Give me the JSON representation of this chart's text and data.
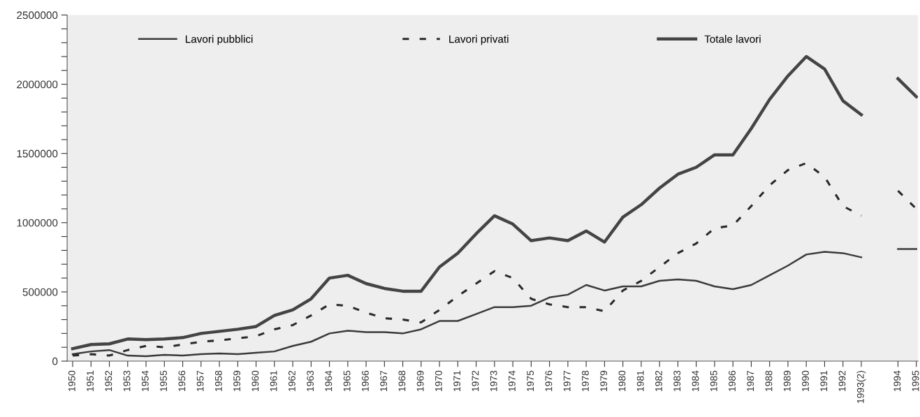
{
  "chart_data": {
    "type": "line",
    "categories": [
      "1950",
      "1951",
      "1952",
      "1953",
      "1954",
      "1955",
      "1956",
      "1957",
      "1958",
      "1959",
      "1960",
      "1961",
      "1962",
      "1963",
      "1964",
      "1965",
      "1966",
      "1967",
      "1968",
      "1969",
      "1970",
      "1971",
      "1972",
      "1973",
      "1974",
      "1975",
      "1976",
      "1977",
      "1978",
      "1979",
      "1980",
      "1981",
      "1982",
      "1983",
      "1984",
      "1985",
      "1986",
      "1987",
      "1988",
      "1989",
      "1990",
      "1991",
      "1992",
      "1993(2)",
      null,
      "1994",
      "1995"
    ],
    "series": [
      {
        "name": "Lavori pubblici",
        "color": "#3a3a3a",
        "line_style": "solid",
        "values": [
          50000,
          70000,
          80000,
          40000,
          35000,
          45000,
          40000,
          50000,
          55000,
          50000,
          60000,
          70000,
          110000,
          140000,
          200000,
          220000,
          210000,
          210000,
          200000,
          230000,
          290000,
          290000,
          340000,
          390000,
          390000,
          400000,
          460000,
          480000,
          550000,
          510000,
          540000,
          540000,
          580000,
          590000,
          580000,
          540000,
          520000,
          550000,
          620000,
          690000,
          770000,
          790000,
          780000,
          750000,
          null,
          810000,
          810000
        ]
      },
      {
        "name": "Lavori privati",
        "color": "#2a2a2a",
        "line_style": "dashed",
        "values": [
          40000,
          50000,
          40000,
          80000,
          110000,
          100000,
          120000,
          140000,
          150000,
          165000,
          180000,
          230000,
          260000,
          330000,
          410000,
          400000,
          350000,
          310000,
          300000,
          280000,
          370000,
          470000,
          560000,
          650000,
          600000,
          450000,
          410000,
          390000,
          390000,
          360000,
          510000,
          580000,
          680000,
          780000,
          850000,
          960000,
          980000,
          1120000,
          1270000,
          1380000,
          1430000,
          1330000,
          1120000,
          1050000,
          null,
          1230000,
          1100000
        ]
      },
      {
        "name": "Totale lavori",
        "color": "#444444",
        "line_style": "solid",
        "values": [
          90000,
          120000,
          125000,
          160000,
          155000,
          160000,
          170000,
          200000,
          215000,
          230000,
          250000,
          330000,
          370000,
          450000,
          600000,
          620000,
          560000,
          525000,
          505000,
          505000,
          680000,
          780000,
          920000,
          1050000,
          990000,
          870000,
          890000,
          870000,
          940000,
          860000,
          1040000,
          1130000,
          1250000,
          1350000,
          1400000,
          1490000,
          1490000,
          1680000,
          1890000,
          2060000,
          2200000,
          2110000,
          1880000,
          1780000,
          null,
          2040000,
          1910000
        ]
      }
    ],
    "ylim": [
      0,
      2500000
    ],
    "yticks": [
      0,
      {
        "value": 100000,
        "label": null
      },
      {
        "value": 200000,
        "label": null
      },
      {
        "value": 300000,
        "label": null
      },
      {
        "value": 400000,
        "label": null
      },
      500000,
      {
        "value": 600000,
        "label": null
      },
      {
        "value": 700000,
        "label": null
      },
      {
        "value": 800000,
        "label": null
      },
      {
        "value": 900000,
        "label": null
      },
      1000000,
      {
        "value": 1100000,
        "label": null
      },
      {
        "value": 1200000,
        "label": null
      },
      {
        "value": 1300000,
        "label": null
      },
      {
        "value": 1400000,
        "label": null
      },
      1500000,
      {
        "value": 1600000,
        "label": null
      },
      {
        "value": 1700000,
        "label": null
      },
      {
        "value": 1800000,
        "label": null
      },
      {
        "value": 1900000,
        "label": null
      },
      2000000,
      {
        "value": 2100000,
        "label": null
      },
      {
        "value": 2200000,
        "label": null
      },
      {
        "value": 2300000,
        "label": null
      },
      {
        "value": 2400000,
        "label": null
      },
      2500000
    ],
    "grid": false,
    "legend": "top",
    "marker": "none"
  }
}
